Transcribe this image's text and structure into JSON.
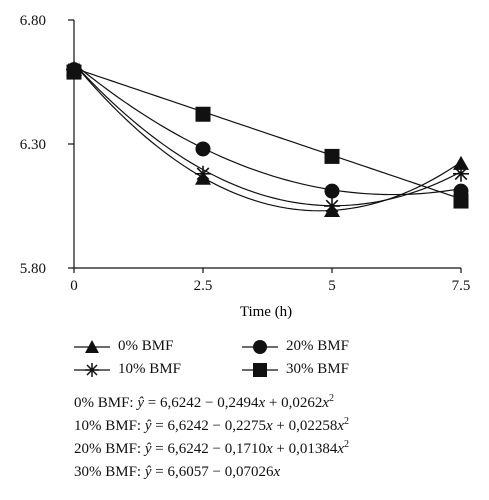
{
  "chart_data": {
    "type": "line",
    "xlabel": "Time (h)",
    "ylabel": "",
    "xlim": [
      0,
      7.5
    ],
    "ylim": [
      5.8,
      6.8
    ],
    "xticks": [
      "0",
      "2.5",
      "5",
      "7.5"
    ],
    "yticks": [
      "5.80",
      "6.30",
      "6.80"
    ],
    "grid": false,
    "legend_position": "bottom",
    "x": [
      0,
      2.5,
      5,
      7.5
    ],
    "series": [
      {
        "name": "0% BMF",
        "marker": "triangle",
        "values": [
          6.6,
          6.16,
          6.03,
          6.22
        ],
        "fit": {
          "a": 6.6242,
          "b": -0.2494,
          "c": 0.0262
        }
      },
      {
        "name": "10% BMF",
        "marker": "star",
        "values": [
          6.6,
          6.18,
          6.05,
          6.18
        ],
        "fit": {
          "a": 6.6242,
          "b": -0.2275,
          "c": 0.02258
        }
      },
      {
        "name": "20% BMF",
        "marker": "circle",
        "values": [
          6.6,
          6.28,
          6.11,
          6.11
        ],
        "fit": {
          "a": 6.6242,
          "b": -0.171,
          "c": 0.01384
        }
      },
      {
        "name": "30% BMF",
        "marker": "square",
        "values": [
          6.59,
          6.42,
          6.25,
          6.07
        ],
        "fit": {
          "a": 6.6057,
          "b": -0.07026,
          "c": 0
        }
      }
    ],
    "equations": [
      {
        "label": "0% BMF: ",
        "lhs": "ŷ",
        "rhs": " = 6,6242 − 0,2494",
        "t1": "x",
        "mid": " + 0,0262",
        "t2": "x",
        "pow": "2"
      },
      {
        "label": "10% BMF: ",
        "lhs": "ŷ",
        "rhs": " = 6,6242 − 0,2275",
        "t1": "x",
        "mid": " + 0,02258",
        "t2": "x",
        "pow": "2"
      },
      {
        "label": "20% BMF: ",
        "lhs": "ŷ",
        "rhs": " = 6,6242 − 0,1710",
        "t1": "x",
        "mid": " + 0,01384",
        "t2": "x",
        "pow": "2"
      },
      {
        "label": "30% BMF: ",
        "lhs": "ŷ",
        "rhs": " = 6,6057 − 0,07026",
        "t1": "x",
        "mid": "",
        "t2": "",
        "pow": ""
      }
    ]
  }
}
